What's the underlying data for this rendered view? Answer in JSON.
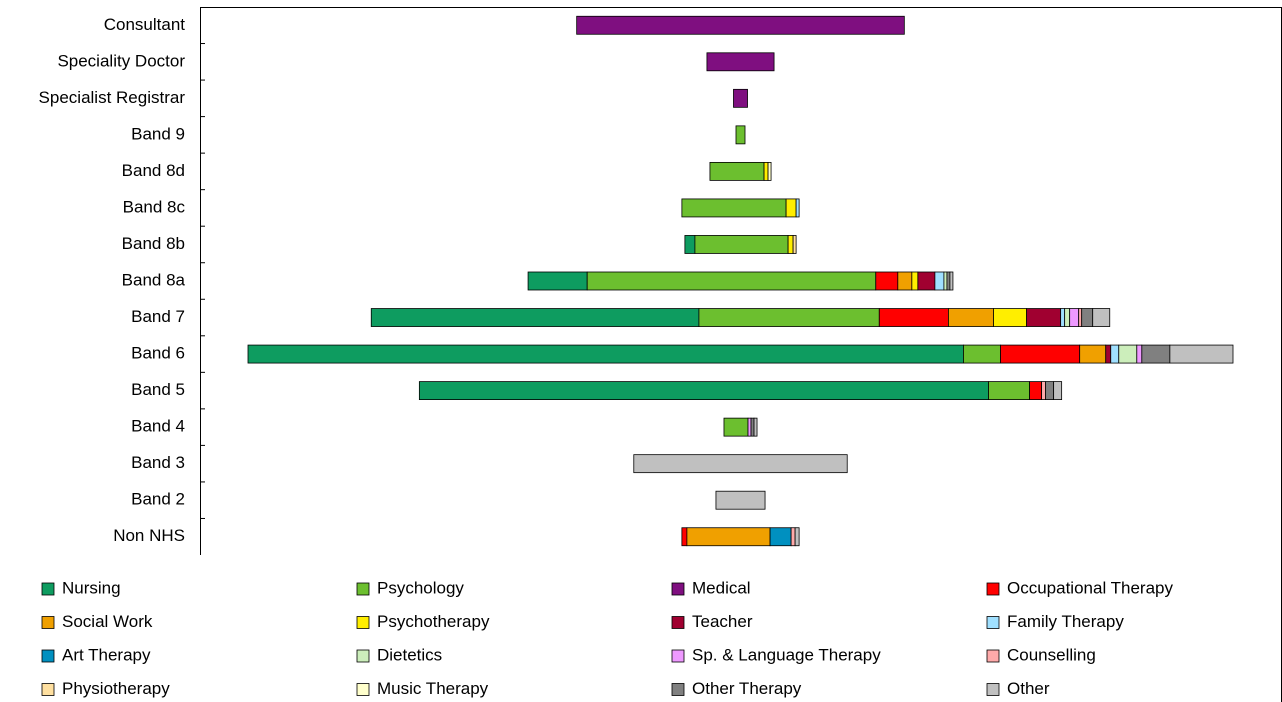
{
  "chart_data": {
    "type": "centered_stacked_bar",
    "categories": [
      "Consultant",
      "Speciality Doctor",
      "Specialist Registrar",
      "Band 9",
      "Band 8d",
      "Band 8c",
      "Band 8b",
      "Band 8a",
      "Band 7",
      "Band 6",
      "Band 5",
      "Band 4",
      "Band 3",
      "Band 2",
      "Non NHS"
    ],
    "legend": "bottom",
    "series": [
      {
        "name": "Nursing",
        "color": "#0e9c60",
        "values": [
          0,
          0,
          0,
          0,
          0,
          0,
          10,
          59,
          327,
          714,
          568,
          0,
          0,
          0,
          0
        ]
      },
      {
        "name": "Psychology",
        "color": "#6cbf2f",
        "values": [
          0,
          0,
          0,
          9,
          54,
          104,
          93,
          288,
          180,
          37,
          41,
          24,
          0,
          0,
          0
        ]
      },
      {
        "name": "Medical",
        "color": "#7f0f80",
        "values": [
          327,
          67,
          14,
          0,
          0,
          0,
          0,
          0,
          0,
          0,
          0,
          0,
          0,
          0,
          0
        ]
      },
      {
        "name": "Occupational Therapy",
        "color": "#ff0000",
        "values": [
          0,
          0,
          0,
          0,
          0,
          0,
          0,
          22,
          69,
          79,
          12,
          0,
          0,
          0,
          5
        ]
      },
      {
        "name": "Social Work",
        "color": "#f0a000",
        "values": [
          0,
          0,
          0,
          0,
          0,
          0,
          0,
          14,
          45,
          26,
          0,
          0,
          0,
          0,
          83
        ]
      },
      {
        "name": "Psychotherapy",
        "color": "#ffee00",
        "values": [
          0,
          0,
          0,
          0,
          4,
          10,
          5,
          6,
          33,
          0,
          0,
          0,
          0,
          0,
          0
        ]
      },
      {
        "name": "Teacher",
        "color": "#a00030",
        "values": [
          0,
          0,
          0,
          0,
          0,
          0,
          0,
          17,
          34,
          5,
          0,
          0,
          0,
          0,
          0
        ]
      },
      {
        "name": "Family Therapy",
        "color": "#a0e0ff",
        "values": [
          0,
          0,
          0,
          0,
          0,
          3,
          0,
          9,
          4,
          8,
          0,
          0,
          0,
          0,
          0
        ]
      },
      {
        "name": "Art Therapy",
        "color": "#0090c0",
        "values": [
          0,
          0,
          0,
          0,
          0,
          0,
          0,
          0,
          0,
          0,
          0,
          0,
          0,
          0,
          21
        ]
      },
      {
        "name": "Dietetics",
        "color": "#cceebb",
        "values": [
          0,
          0,
          0,
          0,
          0,
          0,
          0,
          3,
          5,
          18,
          0,
          0,
          0,
          0,
          0
        ]
      },
      {
        "name": "Sp. & Language Therapy",
        "color": "#ee99ff",
        "values": [
          0,
          0,
          0,
          0,
          0,
          0,
          0,
          0,
          9,
          5,
          0,
          3,
          0,
          0,
          0
        ]
      },
      {
        "name": "Counselling",
        "color": "#ffaaaa",
        "values": [
          0,
          0,
          0,
          0,
          0,
          0,
          0,
          0,
          3,
          0,
          4,
          0,
          0,
          0,
          4
        ]
      },
      {
        "name": "Physiotherapy",
        "color": "#ffe0a0",
        "values": [
          0,
          0,
          0,
          0,
          0,
          0,
          3,
          0,
          0,
          0,
          0,
          0,
          0,
          0,
          0
        ]
      },
      {
        "name": "Music Therapy",
        "color": "#ffffcc",
        "values": [
          0,
          0,
          0,
          0,
          3,
          0,
          0,
          0,
          0,
          0,
          0,
          0,
          0,
          0,
          0
        ]
      },
      {
        "name": "Other Therapy",
        "color": "#808080",
        "values": [
          0,
          0,
          0,
          0,
          0,
          0,
          0,
          3,
          11,
          28,
          8,
          3,
          0,
          0,
          0
        ]
      },
      {
        "name": "Other",
        "color": "#c0c0c0",
        "values": [
          0,
          0,
          0,
          0,
          0,
          0,
          0,
          3,
          17,
          63,
          8,
          3,
          213,
          49,
          4
        ]
      }
    ]
  }
}
